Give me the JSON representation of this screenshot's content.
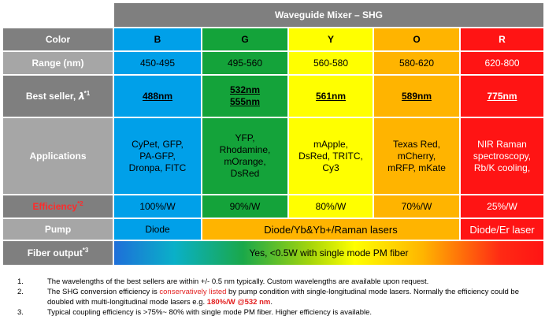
{
  "title": "Waveguide Mixer – SHG",
  "labels": {
    "color": "Color",
    "range": "Range (nm)",
    "best_seller": "Best seller, 𝝀",
    "best_seller_sup": "*1",
    "applications": "Applications",
    "efficiency": "Efficiency",
    "efficiency_sup": "*2",
    "pump": "Pump",
    "fiber_output": "Fiber output",
    "fiber_output_sup": "*3"
  },
  "columns": [
    {
      "color": "B",
      "range": "450-495",
      "best_seller": [
        "488nm"
      ],
      "applications": [
        "CyPet, GFP,",
        "PA-GFP,",
        "Dronpa, FITC"
      ],
      "efficiency": "100%/W"
    },
    {
      "color": "G",
      "range": "495-560",
      "best_seller": [
        "532nm",
        "555nm"
      ],
      "applications": [
        "YFP,",
        "Rhodamine,",
        "mOrange,",
        "DsRed"
      ],
      "efficiency": "90%/W"
    },
    {
      "color": "Y",
      "range": "560-580",
      "best_seller": [
        "561nm"
      ],
      "applications": [
        "mApple,",
        "DsRed, TRITC,",
        "Cy3"
      ],
      "efficiency": "80%/W"
    },
    {
      "color": "O",
      "range": "580-620",
      "best_seller": [
        "589nm"
      ],
      "applications": [
        "Texas Red,",
        "mCherry,",
        "mRFP, mKate"
      ],
      "efficiency": "70%/W"
    },
    {
      "color": "R",
      "range": "620-800",
      "best_seller": [
        "775nm"
      ],
      "applications": [
        "NIR Raman",
        "spectroscopy,",
        "Rb/K cooling,"
      ],
      "efficiency": "25%/W"
    }
  ],
  "pump": {
    "b": "Diode",
    "gyo": "Diode/Yb&Yb+/Raman lasers",
    "r": "Diode/Er laser"
  },
  "fiber_output": "Yes, <0.5W with single mode PM fiber",
  "colors": {
    "B": "#00a0e9",
    "G": "#14a33a",
    "Y": "#ffff00",
    "O": "#ffb400",
    "R": "#ff1414",
    "label": "#a6a6a6",
    "header": "#7f7f7f",
    "highlight": "#e32020"
  },
  "notes": [
    {
      "num": "1.",
      "text": "The wavelengths of the best sellers are within +/- 0.5 nm typically. Custom wavelengths are available upon request."
    },
    {
      "num": "2.",
      "pre": "The SHG conversion efficiency is ",
      "highlight": "conservatively listed",
      "mid": " by pump condition with single-longitudinal mode lasers.  Normally the efficiency could be doubled with multi-longitudinal mode lasers e.g. ",
      "highlight2": "180%/W @532 nm",
      "post": "."
    },
    {
      "num": "3.",
      "text": "Typical coupling efficiency is >75%~ 80% with single mode PM fiber.  Higher efficiency is available."
    }
  ]
}
